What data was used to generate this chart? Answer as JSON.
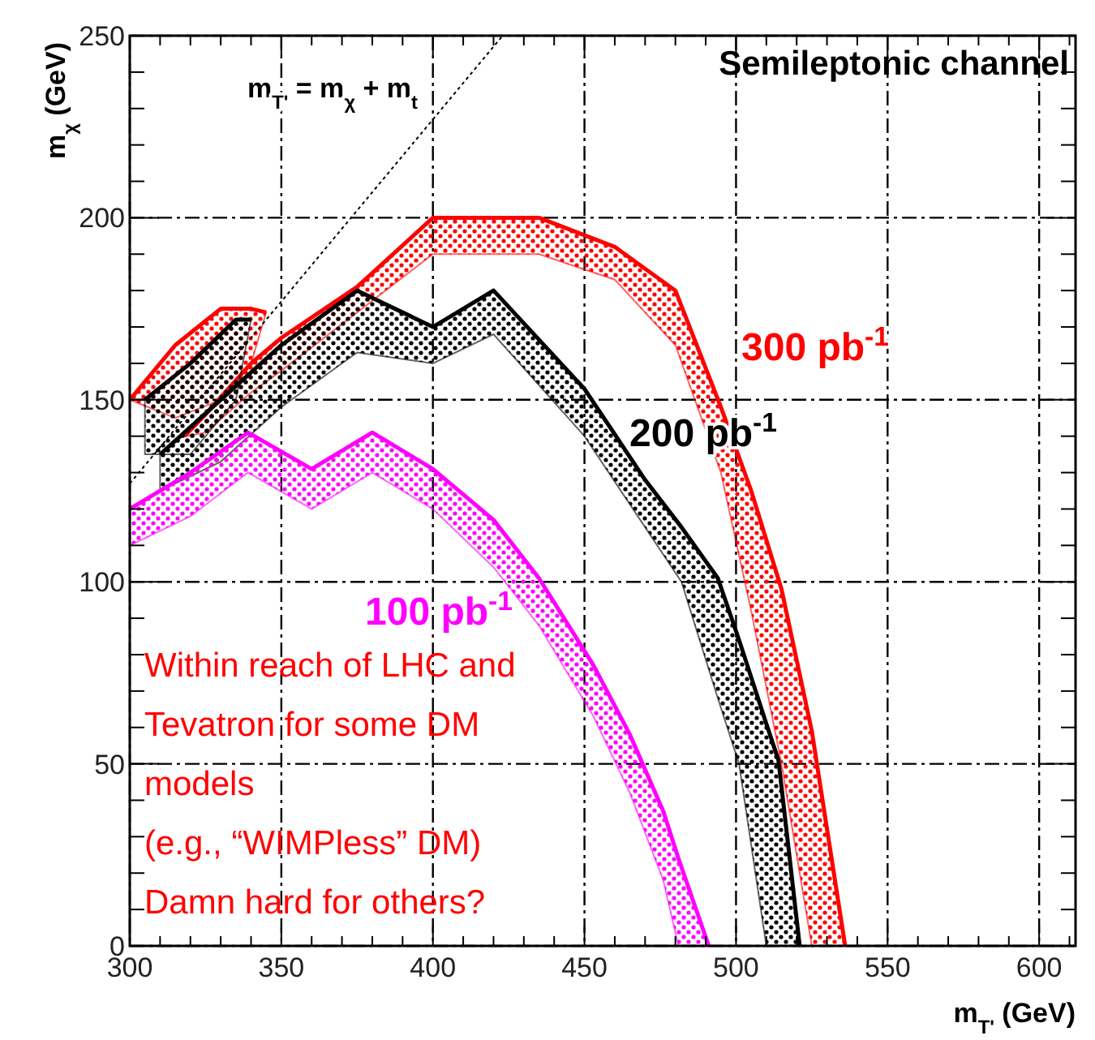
{
  "chart_data": {
    "type": "line",
    "title": "Semileptonic channel",
    "xlabel": "m$_{T'}$ (GeV)",
    "ylabel": "m$_{χ}$ (GeV)",
    "xlim": [
      300,
      612
    ],
    "ylim": [
      0,
      250
    ],
    "xticks": [
      300,
      {
        "value": 310,
        "label": null
      },
      {
        "value": 320,
        "label": null
      },
      {
        "value": 330,
        "label": null
      },
      {
        "value": 340,
        "label": null
      },
      350,
      {
        "value": 360,
        "label": null
      },
      {
        "value": 370,
        "label": null
      },
      {
        "value": 380,
        "label": null
      },
      {
        "value": 390,
        "label": null
      },
      400,
      {
        "value": 410,
        "label": null
      },
      {
        "value": 420,
        "label": null
      },
      {
        "value": 430,
        "label": null
      },
      {
        "value": 440,
        "label": null
      },
      450,
      {
        "value": 460,
        "label": null
      },
      {
        "value": 470,
        "label": null
      },
      {
        "value": 480,
        "label": null
      },
      {
        "value": 490,
        "label": null
      },
      500,
      {
        "value": 510,
        "label": null
      },
      {
        "value": 520,
        "label": null
      },
      {
        "value": 530,
        "label": null
      },
      {
        "value": 540,
        "label": null
      },
      550,
      {
        "value": 560,
        "label": null
      },
      {
        "value": 570,
        "label": null
      },
      {
        "value": 580,
        "label": null
      },
      {
        "value": 590,
        "label": null
      },
      600,
      {
        "value": 610,
        "label": null
      }
    ],
    "yticks": [
      0,
      {
        "value": 10,
        "label": null
      },
      {
        "value": 20,
        "label": null
      },
      {
        "value": 30,
        "label": null
      },
      {
        "value": 40,
        "label": null
      },
      50,
      {
        "value": 60,
        "label": null
      },
      {
        "value": 70,
        "label": null
      },
      {
        "value": 80,
        "label": null
      },
      {
        "value": 90,
        "label": null
      },
      100,
      {
        "value": 110,
        "label": null
      },
      {
        "value": 120,
        "label": null
      },
      {
        "value": 130,
        "label": null
      },
      {
        "value": 140,
        "label": null
      },
      150,
      {
        "value": 160,
        "label": null
      },
      {
        "value": 170,
        "label": null
      },
      {
        "value": 180,
        "label": null
      },
      {
        "value": 190,
        "label": null
      },
      200,
      {
        "value": 210,
        "label": null
      },
      {
        "value": 220,
        "label": null
      },
      {
        "value": 230,
        "label": null
      },
      {
        "value": 240,
        "label": null
      },
      250
    ],
    "grid": true,
    "marker": "none",
    "series": [
      {
        "name": "300 pb$^{-1}$",
        "color": "#ff0000",
        "x": [
          318,
          325,
          340,
          350,
          375,
          400,
          435,
          460,
          480,
          495,
          505,
          515,
          525,
          536
        ],
        "values": [
          140,
          146,
          160,
          167,
          181,
          200,
          200,
          192,
          180,
          148,
          125,
          98,
          59,
          0
        ],
        "upper": [
          140,
          146,
          160,
          167,
          181,
          200,
          200,
          192,
          180,
          148,
          125,
          98,
          59,
          0
        ],
        "lower": [
          140,
          141,
          152,
          158,
          174,
          190,
          190,
          183,
          165,
          130,
          92,
          50,
          0,
          0
        ]
      },
      {
        "color": "#ff0000",
        "x": [
          300,
          315,
          330,
          340,
          345
        ],
        "values": [
          150,
          165,
          175,
          175,
          174
        ],
        "upper": [
          150,
          165,
          175,
          175,
          174
        ],
        "lower": [
          150,
          145,
          150,
          160,
          174
        ]
      },
      {
        "name": "200 pb$^{-1}$",
        "color": "#000000",
        "x": [
          310,
          330,
          350,
          375,
          400,
          420,
          450,
          470,
          482,
          494,
          501,
          510,
          514,
          521
        ],
        "values": [
          135,
          150,
          165,
          180,
          170,
          180,
          153,
          128,
          115,
          101,
          84,
          61,
          51,
          0
        ],
        "upper": [
          135,
          150,
          165,
          180,
          170,
          180,
          153,
          128,
          115,
          101,
          84,
          61,
          51,
          0
        ],
        "lower": [
          125,
          133,
          148,
          163,
          160,
          168,
          140,
          115,
          100,
          68,
          50,
          0,
          0,
          0
        ]
      },
      {
        "color": "#000000",
        "x": [
          305,
          320,
          335,
          340
        ],
        "values": [
          150,
          160,
          172,
          172
        ],
        "upper": [
          150,
          160,
          172,
          172
        ],
        "lower": [
          135,
          135,
          150,
          172
        ]
      },
      {
        "name": "100 pb$^{-1}$",
        "color": "#ff00ff",
        "x": [
          300,
          320,
          339,
          360,
          380,
          400,
          420,
          435,
          453,
          465,
          476,
          481,
          491
        ],
        "values": [
          120,
          130,
          141,
          131,
          141,
          131,
          117,
          101,
          77,
          58,
          37,
          24,
          0
        ],
        "upper": [
          120,
          130,
          141,
          131,
          141,
          131,
          117,
          101,
          77,
          58,
          37,
          24,
          0
        ],
        "lower": [
          110,
          118,
          130,
          120,
          130,
          120,
          104,
          88,
          63,
          42,
          18,
          0,
          0
        ]
      },
      {
        "color": "#000000",
        "line_style": "dotted",
        "x": [
          300,
          423
        ],
        "values": [
          127,
          250
        ]
      }
    ],
    "annotations": [
      "m$_{T'}$ = m$_{χ}$ + m$_{t}$",
      "Within reach of LHC and\nTevatron for some DM\nmodels\n(e.g., “WIMPless” DM)\nDamn hard for others?"
    ]
  }
}
